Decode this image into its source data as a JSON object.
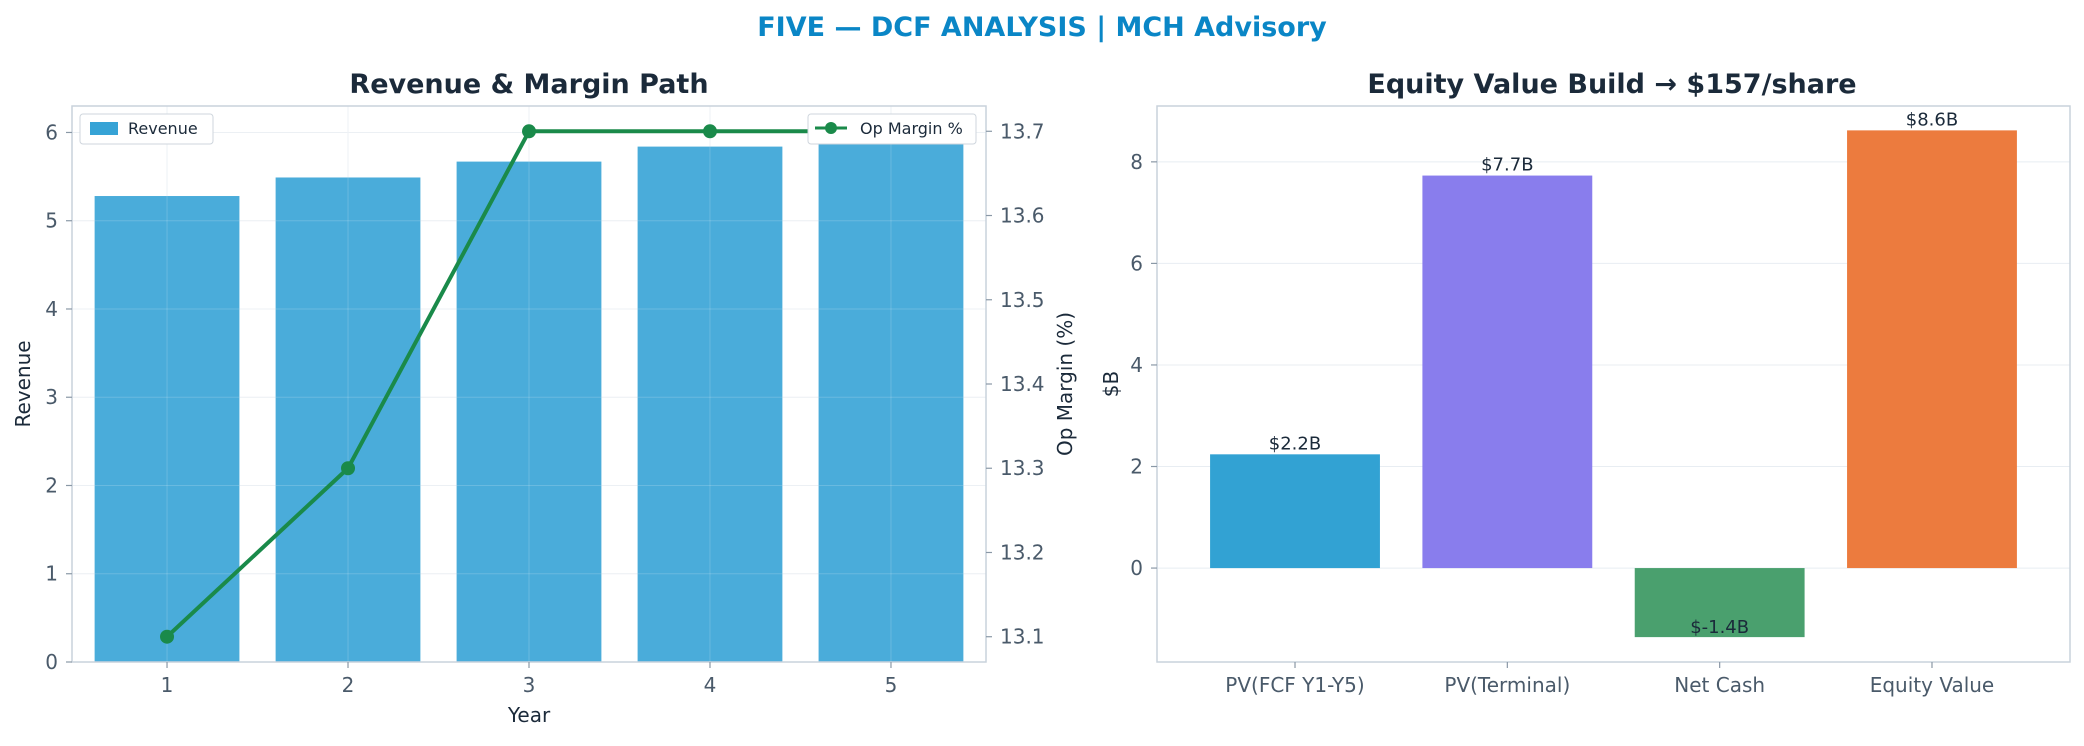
{
  "figure": {
    "suptitle": "FIVE — DCF ANALYSIS | MCH Advisory"
  },
  "chart_data": [
    {
      "type": "bar",
      "title": "Revenue & Margin Path",
      "xlabel": "Year",
      "ylabel": "Revenue",
      "y2label": "Op Margin (%)",
      "categories": [
        "1",
        "2",
        "3",
        "4",
        "5"
      ],
      "ylim": [
        0,
        6.3
      ],
      "yticks": [
        "0",
        "1",
        "2",
        "3",
        "4",
        "5",
        "6"
      ],
      "y2lim": [
        13.07,
        13.73
      ],
      "y2ticks": [
        "13.1",
        "13.2",
        "13.3",
        "13.4",
        "13.5",
        "13.6",
        "13.7"
      ],
      "grid": true,
      "series": [
        {
          "name": "Revenue",
          "kind": "bar",
          "axis": "left",
          "color": "#36a3d6",
          "values": [
            5.28,
            5.49,
            5.67,
            5.84,
            6.02
          ]
        },
        {
          "name": "Op Margin %",
          "kind": "line",
          "axis": "right",
          "color": "#1a8a4a",
          "values": [
            13.1,
            13.3,
            13.7,
            13.7,
            13.7
          ]
        }
      ],
      "legends": [
        {
          "label": "Revenue",
          "placement": "upper-left"
        },
        {
          "label": "Op Margin %",
          "placement": "upper-right"
        }
      ]
    },
    {
      "type": "bar",
      "title": "Equity Value Build → $157/share",
      "xlabel": "",
      "ylabel": "$B",
      "categories": [
        "PV(FCF Y1-Y5)",
        "PV(Terminal)",
        "Net Cash",
        "Equity Value"
      ],
      "values": [
        2.24,
        7.73,
        -1.36,
        8.62
      ],
      "data_labels": [
        "$2.2B",
        "$7.7B",
        "$-1.4B",
        "$8.6B"
      ],
      "colors": [
        "#32a2d3",
        "#897ded",
        "#4aa06e",
        "#ec7b3e"
      ],
      "ylim": [
        -1.85,
        9.1
      ],
      "yticks": [
        "0",
        "2",
        "4",
        "6",
        "8"
      ],
      "grid": true
    }
  ]
}
